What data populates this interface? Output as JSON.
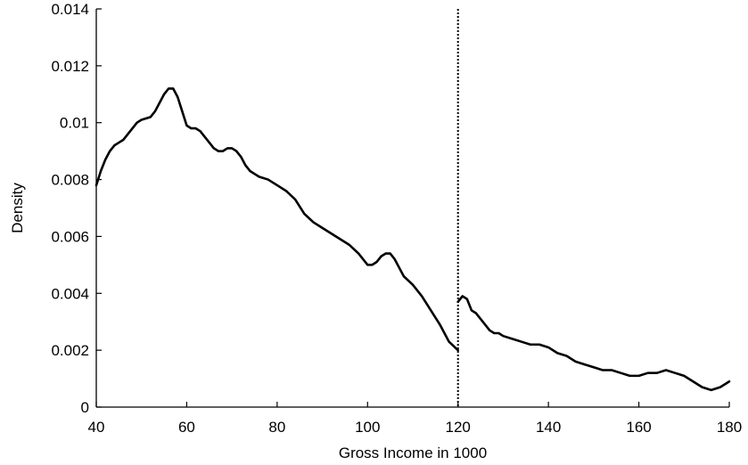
{
  "chart_data": {
    "type": "line",
    "xlabel": "Gross Income in 1000",
    "ylabel": "Density",
    "xlim": [
      40,
      180
    ],
    "ylim": [
      0,
      0.014
    ],
    "x_ticks": [
      40,
      60,
      80,
      100,
      120,
      140,
      160,
      180
    ],
    "x_tick_labels": [
      "40",
      "60",
      "80",
      "100",
      "120",
      "140",
      "160",
      "180"
    ],
    "y_ticks": [
      0,
      0.002,
      0.004,
      0.006,
      0.008,
      0.01,
      0.012,
      0.014
    ],
    "y_tick_labels": [
      "0",
      "0.002",
      "0.004",
      "0.006",
      "0.008",
      "0.01",
      "0.012",
      "0.014"
    ],
    "grid": false,
    "line_color": "#000000",
    "series": [
      {
        "segment": "below-threshold",
        "x": [
          40,
          41,
          42,
          43,
          44,
          45,
          46,
          48,
          49,
          50,
          52,
          53,
          54,
          55,
          56,
          57,
          58,
          59,
          60,
          61,
          62,
          63,
          64,
          65,
          66,
          67,
          68,
          69,
          70,
          71,
          72,
          73,
          74,
          75,
          76,
          78,
          80,
          82,
          84,
          86,
          88,
          90,
          92,
          94,
          96,
          98,
          100,
          101,
          102,
          103,
          104,
          105,
          106,
          107,
          108,
          110,
          112,
          114,
          116,
          118,
          120
        ],
        "y": [
          0.0078,
          0.0083,
          0.0087,
          0.009,
          0.0092,
          0.0093,
          0.0094,
          0.0098,
          0.01,
          0.0101,
          0.0102,
          0.0104,
          0.0107,
          0.011,
          0.0112,
          0.0112,
          0.0109,
          0.0104,
          0.0099,
          0.0098,
          0.0098,
          0.0097,
          0.0095,
          0.0093,
          0.0091,
          0.009,
          0.009,
          0.0091,
          0.0091,
          0.009,
          0.0088,
          0.0085,
          0.0083,
          0.0082,
          0.0081,
          0.008,
          0.0078,
          0.0076,
          0.0073,
          0.0068,
          0.0065,
          0.0063,
          0.0061,
          0.0059,
          0.0057,
          0.0054,
          0.005,
          0.005,
          0.0051,
          0.0053,
          0.0054,
          0.0054,
          0.0052,
          0.0049,
          0.0046,
          0.0043,
          0.0039,
          0.0034,
          0.0029,
          0.0023,
          0.002
        ]
      },
      {
        "segment": "above-threshold",
        "x": [
          120,
          121,
          122,
          123,
          124,
          125,
          126,
          127,
          128,
          129,
          130,
          132,
          134,
          136,
          138,
          140,
          142,
          144,
          146,
          148,
          150,
          152,
          154,
          156,
          158,
          160,
          162,
          164,
          166,
          168,
          170,
          172,
          174,
          176,
          178,
          180
        ],
        "y": [
          0.0037,
          0.0039,
          0.0038,
          0.0034,
          0.0033,
          0.0031,
          0.0029,
          0.0027,
          0.0026,
          0.0026,
          0.0025,
          0.0024,
          0.0023,
          0.0022,
          0.0022,
          0.0021,
          0.0019,
          0.0018,
          0.0016,
          0.0015,
          0.0014,
          0.0013,
          0.0013,
          0.0012,
          0.0011,
          0.0011,
          0.0012,
          0.0012,
          0.0013,
          0.0012,
          0.0011,
          0.0009,
          0.0007,
          0.0006,
          0.0007,
          0.0009
        ]
      }
    ],
    "threshold_line": {
      "x": 120,
      "style": "dotted"
    }
  }
}
